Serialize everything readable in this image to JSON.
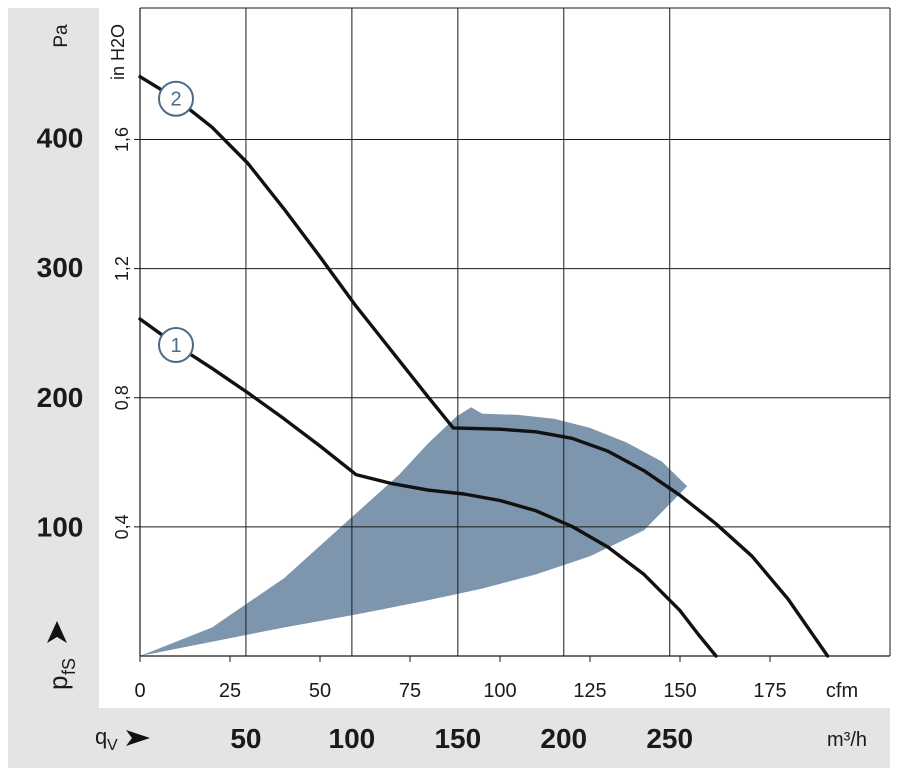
{
  "chart_data": {
    "type": "line",
    "x_unit_primary": "cfm",
    "x_unit_secondary": "m³/h",
    "y_unit_primary": "Pa",
    "y_unit_secondary": "in H2O",
    "y_axis_symbol": "p",
    "y_axis_symbol_sub": "fS",
    "x_axis_symbol": "q",
    "x_axis_symbol_sub": "V",
    "xlim_cfm": [
      0,
      200
    ],
    "ylim_pa": [
      0,
      500
    ],
    "grid": true,
    "x_ticks_cfm": [
      "0",
      "25",
      "50",
      "75",
      "100",
      "125",
      "150",
      "175"
    ],
    "x_ticks_m3h": [
      "50",
      "100",
      "150",
      "200",
      "250"
    ],
    "y_ticks_pa": [
      "100",
      "200",
      "300",
      "400"
    ],
    "y_ticks_inh2o": [
      "0,4",
      "0,8",
      "1,2",
      "1,6"
    ],
    "series": [
      {
        "name": "1",
        "x": [
          0,
          10,
          20,
          30,
          40,
          50,
          60,
          70,
          80,
          90,
          100,
          110,
          120,
          130,
          140,
          150,
          155,
          160
        ],
        "y": [
          260,
          240,
          222,
          203,
          183,
          162,
          140,
          133,
          128,
          125,
          120,
          112,
          100,
          84,
          63,
          35,
          17,
          0
        ]
      },
      {
        "name": "2",
        "x": [
          0,
          10,
          20,
          30,
          40,
          50,
          60,
          70,
          80,
          87,
          100,
          110,
          120,
          130,
          140,
          150,
          160,
          170,
          180,
          191
        ],
        "y": [
          447,
          430,
          408,
          380,
          345,
          308,
          270,
          235,
          200,
          176,
          175,
          173,
          168,
          158,
          143,
          124,
          102,
          77,
          44,
          0
        ]
      }
    ],
    "operating_range": {
      "name": "shaded operating area",
      "color": "#7d96ae",
      "upper_boundary_x": [
        0,
        20,
        40,
        60,
        72,
        80,
        88,
        92,
        95,
        105,
        115,
        125,
        135,
        145,
        152
      ],
      "upper_boundary_y": [
        0,
        22,
        60,
        110,
        140,
        164,
        185,
        192,
        187,
        186,
        183,
        176,
        165,
        150,
        131
      ],
      "lower_boundary_x": [
        152,
        140,
        125,
        110,
        95,
        80,
        60,
        40,
        20,
        0
      ],
      "lower_boundary_y": [
        131,
        97,
        77,
        63,
        52,
        43,
        32,
        22,
        11,
        0
      ]
    }
  }
}
